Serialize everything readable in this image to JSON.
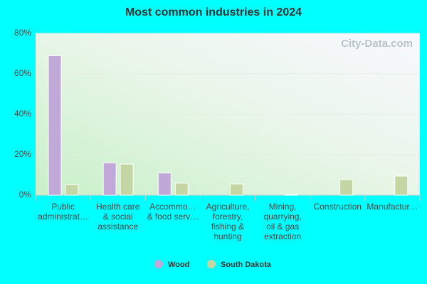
{
  "chart_data": {
    "type": "bar",
    "title": "Most common industries in 2024",
    "watermark": "City-Data.com",
    "categories": [
      [
        "Public",
        "administrat…"
      ],
      [
        "Health care",
        "& social",
        "assistance"
      ],
      [
        "Accommo…",
        "& food serv…"
      ],
      [
        "Agriculture,",
        "forestry,",
        "fishing &",
        "hunting"
      ],
      [
        "Mining,",
        "quarrying,",
        "oil & gas",
        "extraction"
      ],
      [
        "Construction"
      ],
      [
        "Manufactur…"
      ]
    ],
    "series": [
      {
        "name": "Wood",
        "color": "#c0a8d8",
        "values": [
          69,
          16,
          11,
          0,
          0,
          0,
          0
        ]
      },
      {
        "name": "South Dakota",
        "color": "#c5d6a5",
        "values": [
          5.3,
          15.4,
          6,
          5.6,
          0.4,
          7.7,
          9.5
        ]
      }
    ],
    "ylim": [
      0,
      80
    ],
    "yticks": [
      {
        "value": 0,
        "label": "0%"
      },
      {
        "value": 20,
        "label": "20%"
      },
      {
        "value": 40,
        "label": "40%"
      },
      {
        "value": 60,
        "label": "60%"
      },
      {
        "value": 80,
        "label": "80%"
      }
    ],
    "grid": true
  }
}
